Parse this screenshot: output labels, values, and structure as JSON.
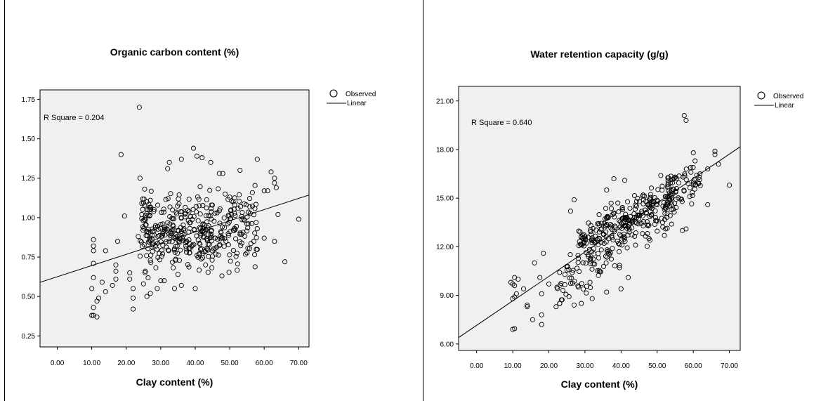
{
  "chart_data": [
    {
      "type": "scatter",
      "title": "Organic carbon content (%)",
      "xlabel": "Clay content (%)",
      "ylabel": "",
      "xlim": [
        -5,
        73
      ],
      "ylim": [
        0.18,
        1.81
      ],
      "xticks": [
        "0.00",
        "10.00",
        "20.00",
        "30.00",
        "40.00",
        "50.00",
        "60.00",
        "70.00"
      ],
      "yticks": [
        "0.25",
        "0.50",
        "0.75",
        "1.00",
        "1.25",
        "1.50",
        "1.75"
      ],
      "annotation": "R Square = 0.204",
      "legend": {
        "placement": "right",
        "items": [
          {
            "label": "Observed",
            "marker": "circle"
          },
          {
            "label": "Linear",
            "marker": "line"
          }
        ]
      },
      "fit_line": {
        "intercept": 0.625,
        "slope": 0.0071
      },
      "seed": 11,
      "series": [
        {
          "name": "Observed",
          "points": [
            [
              10,
              0.38
            ],
            [
              10.5,
              0.38
            ],
            [
              11.5,
              0.37
            ],
            [
              10.5,
              0.43
            ],
            [
              11.5,
              0.47
            ],
            [
              10,
              0.55
            ],
            [
              10.5,
              0.62
            ],
            [
              10.5,
              0.71
            ],
            [
              10.5,
              0.79
            ],
            [
              10.5,
              0.82
            ],
            [
              10.5,
              0.86
            ],
            [
              12,
              0.49
            ],
            [
              13,
              0.59
            ],
            [
              14,
              0.53
            ],
            [
              14,
              0.79
            ],
            [
              16,
              0.57
            ],
            [
              17,
              0.61
            ],
            [
              17,
              0.66
            ],
            [
              17,
              0.7
            ],
            [
              17.5,
              0.85
            ],
            [
              18.5,
              1.4
            ],
            [
              19.5,
              1.01
            ],
            [
              22,
              0.42
            ],
            [
              22,
              0.49
            ],
            [
              21,
              0.61
            ],
            [
              21,
              0.65
            ],
            [
              22,
              0.55
            ],
            [
              23.5,
              0.88
            ],
            [
              24,
              1.25
            ],
            [
              23.8,
              1.7
            ],
            [
              24.5,
              1.02
            ],
            [
              24.5,
              1.09
            ],
            [
              26,
              0.5
            ],
            [
              26,
              1.1
            ],
            [
              27,
              0.52
            ],
            [
              27,
              1.11
            ],
            [
              28,
              1.04
            ],
            [
              32,
              1.31
            ],
            [
              32.5,
              1.35
            ],
            [
              36,
              1.37
            ],
            [
              39.5,
              1.44
            ],
            [
              40.5,
              1.39
            ],
            [
              42,
              1.38
            ],
            [
              44.5,
              1.35
            ],
            [
              47,
              1.28
            ],
            [
              48,
              1.28
            ],
            [
              53,
              1.3
            ],
            [
              58,
              1.37
            ],
            [
              62,
              1.29
            ],
            [
              63,
              1.25
            ],
            [
              63,
              1.22
            ],
            [
              63.5,
              1.19
            ],
            [
              61,
              1.17
            ],
            [
              60,
              1.17
            ],
            [
              64,
              1.02
            ],
            [
              70,
              0.99
            ],
            [
              63,
              0.85
            ],
            [
              66,
              0.72
            ],
            [
              60,
              0.87
            ],
            [
              55,
              0.96
            ],
            [
              57,
              0.85
            ],
            [
              58,
              0.93
            ],
            [
              50,
              1.13
            ],
            [
              51,
              1.1
            ],
            [
              29,
              0.55
            ],
            [
              30,
              0.6
            ],
            [
              31,
              0.6
            ],
            [
              34,
              0.55
            ],
            [
              36,
              0.57
            ],
            [
              40,
              0.55
            ],
            [
              25,
              0.58
            ],
            [
              25.5,
              0.66
            ],
            [
              27,
              0.73
            ],
            [
              35,
              0.64
            ],
            [
              43,
              0.7
            ]
          ],
          "clusters": [
            {
              "x": [
                24,
                58
              ],
              "y": [
                0.6,
                1.22
              ],
              "n": 330
            },
            {
              "x": [
                26,
                45
              ],
              "y": [
                0.7,
                1.05
              ],
              "n": 60
            }
          ]
        }
      ]
    },
    {
      "type": "scatter",
      "title": "Water retention capacity (g/g)",
      "xlabel": "Clay content (%)",
      "ylabel": "",
      "xlim": [
        -5,
        73
      ],
      "ylim": [
        5.6,
        21.9
      ],
      "xticks": [
        "0.00",
        "10.00",
        "20.00",
        "30.00",
        "40.00",
        "50.00",
        "60.00",
        "70.00"
      ],
      "yticks": [
        "6.00",
        "9.00",
        "12.00",
        "15.00",
        "18.00",
        "21.00"
      ],
      "annotation": "R Square = 0.640",
      "legend": {
        "placement": "right",
        "items": [
          {
            "label": "Observed",
            "marker": "circle"
          },
          {
            "label": "Linear",
            "marker": "line"
          }
        ]
      },
      "fit_line": {
        "intercept": 7.15,
        "slope": 0.151
      },
      "seed": 29,
      "series": [
        {
          "name": "Observed",
          "points": [
            [
              10,
              6.9
            ],
            [
              10.5,
              6.95
            ],
            [
              10,
              8.8
            ],
            [
              10.5,
              8.9
            ],
            [
              11,
              9.1
            ],
            [
              9.5,
              9.8
            ],
            [
              10,
              9.7
            ],
            [
              10.5,
              9.6
            ],
            [
              10.5,
              10.1
            ],
            [
              11.5,
              10
            ],
            [
              13,
              9.4
            ],
            [
              14,
              8.4
            ],
            [
              14,
              8.3
            ],
            [
              15.5,
              7.5
            ],
            [
              16,
              11
            ],
            [
              18,
              7.2
            ],
            [
              18,
              7.8
            ],
            [
              18,
              9.1
            ],
            [
              17.5,
              10.1
            ],
            [
              18.5,
              11.6
            ],
            [
              20,
              9.7
            ],
            [
              22,
              8.3
            ],
            [
              23,
              8.5
            ],
            [
              26,
              14.2
            ],
            [
              27,
              14.9
            ],
            [
              57.5,
              20.1
            ],
            [
              58,
              19.8
            ],
            [
              70,
              15.8
            ],
            [
              67,
              17.1
            ],
            [
              66,
              17.9
            ],
            [
              66,
              17.7
            ],
            [
              60,
              17.8
            ],
            [
              60.5,
              17.3
            ],
            [
              64,
              16.8
            ],
            [
              64,
              14.6
            ],
            [
              58,
              13.1
            ],
            [
              57,
              13
            ],
            [
              54,
              13.4
            ],
            [
              52,
              12.7
            ],
            [
              48,
              12.4
            ],
            [
              44,
              12.1
            ],
            [
              40,
              9.4
            ],
            [
              42,
              10.1
            ],
            [
              36,
              9.2
            ],
            [
              32,
              8.8
            ],
            [
              29,
              8.5
            ],
            [
              27,
              8.4
            ],
            [
              36,
              15.5
            ],
            [
              38,
              16.2
            ],
            [
              41,
              16.1
            ],
            [
              51,
              16.4
            ],
            [
              55,
              16.3
            ]
          ],
          "clusters": [
            {
              "x": [
                22,
                56
              ],
              "y": [
                9.5,
                15.5
              ],
              "n": 200,
              "band": 1.5
            },
            {
              "x": [
                28,
                62
              ],
              "y": [
                12.2,
                16.2
              ],
              "n": 200,
              "band": 1.2
            }
          ]
        }
      ]
    }
  ]
}
